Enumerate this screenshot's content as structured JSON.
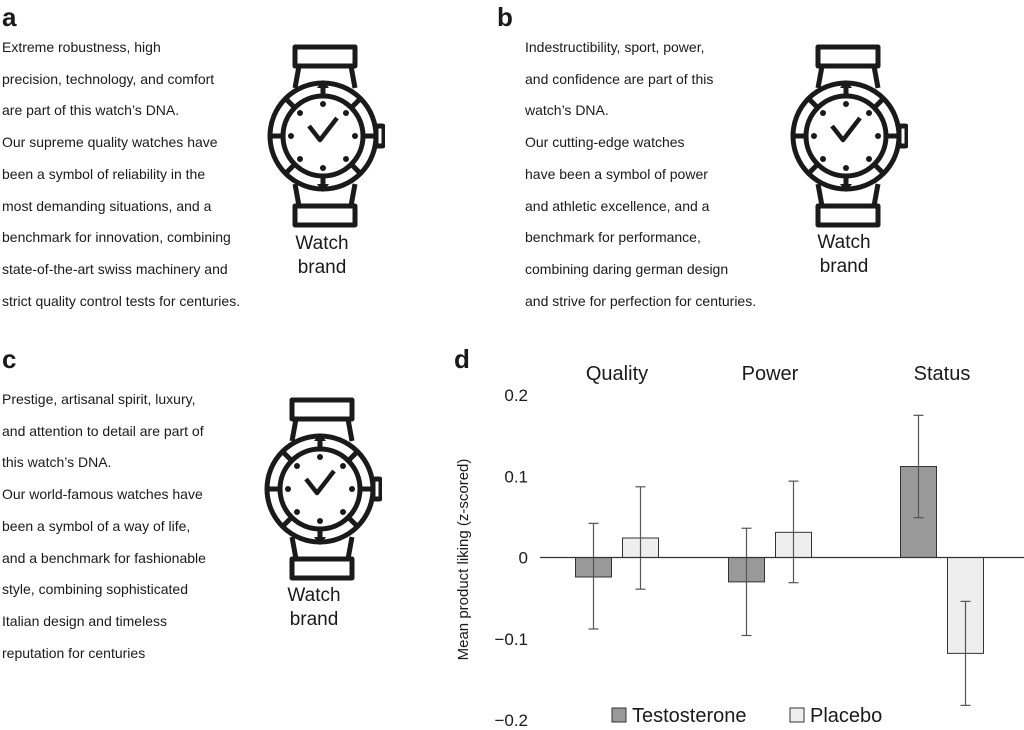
{
  "panels": {
    "a": {
      "label": "a",
      "lines": [
        "Extreme robustness, high",
        "precision, technology, and comfort",
        "are part of this watch’s DNA.",
        "Our supreme quality watches have",
        "been a symbol of reliability in the",
        "most demanding situations, and a",
        "benchmark for innovation, combining",
        "state-of-the-art swiss machinery and",
        "strict quality control tests for centuries."
      ],
      "brand": [
        "Watch",
        "brand"
      ]
    },
    "b": {
      "label": "b",
      "lines": [
        "Indestructibility, sport, power,",
        "and confidence are part of this",
        "watch’s DNA.",
        "Our cutting-edge watches",
        "have been a symbol of power",
        "and athletic excellence, and a",
        "benchmark for performance,",
        "combining daring german design",
        "and strive for perfection for centuries."
      ],
      "brand": [
        "Watch",
        "brand"
      ]
    },
    "c": {
      "label": "c",
      "lines": [
        "Prestige, artisanal spirit, luxury,",
        "and attention to detail are part of",
        "this watch’s DNA.",
        "Our world-famous watches have",
        "been a symbol of a way of life,",
        "and a benchmark for fashionable",
        "style, combining sophisticated",
        "Italian design and timeless",
        "reputation for centuries"
      ],
      "brand": [
        "Watch",
        "brand"
      ]
    },
    "d": {
      "label": "d"
    }
  },
  "chart_data": {
    "type": "bar",
    "categories": [
      "Quality",
      "Power",
      "Status"
    ],
    "ylabel": "Mean product liking (z-scored)",
    "ylim": [
      -0.2,
      0.2
    ],
    "yticks": [
      0.2,
      0.1,
      0,
      -0.1,
      -0.2
    ],
    "ytick_labels": [
      "0.2",
      "0.1",
      "0",
      "−0.1",
      "−0.2"
    ],
    "legend_position": "bottom",
    "series": [
      {
        "name": "Testosterone",
        "color": "#999999",
        "values": [
          -0.024,
          -0.03,
          0.112
        ],
        "err_low": [
          -0.088,
          -0.096,
          0.049
        ],
        "err_high": [
          0.042,
          0.036,
          0.175
        ]
      },
      {
        "name": "Placebo",
        "color": "#eeeeee",
        "values": [
          0.024,
          0.031,
          -0.118
        ],
        "err_low": [
          -0.039,
          -0.031,
          -0.182
        ],
        "err_high": [
          0.087,
          0.094,
          -0.054
        ]
      }
    ]
  }
}
